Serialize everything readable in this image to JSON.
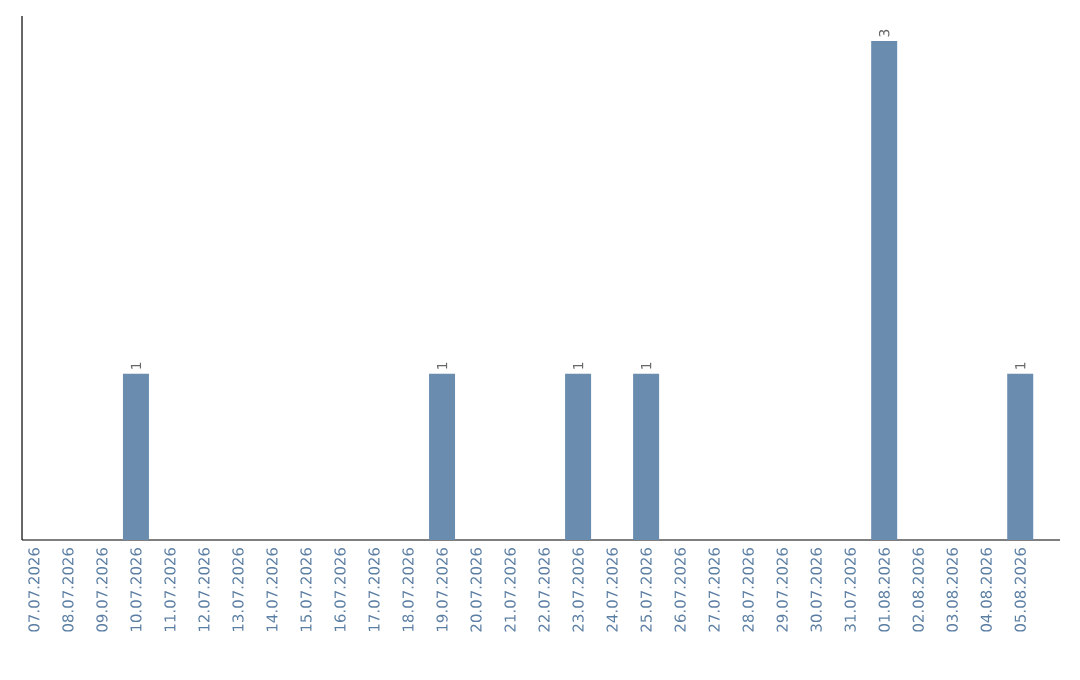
{
  "chart_data": {
    "type": "bar",
    "categories": [
      "07.07.2026",
      "08.07.2026",
      "09.07.2026",
      "10.07.2026",
      "11.07.2026",
      "12.07.2026",
      "13.07.2026",
      "14.07.2026",
      "15.07.2026",
      "16.07.2026",
      "17.07.2026",
      "18.07.2026",
      "19.07.2026",
      "20.07.2026",
      "21.07.2026",
      "22.07.2026",
      "23.07.2026",
      "24.07.2026",
      "25.07.2026",
      "26.07.2026",
      "27.07.2026",
      "28.07.2026",
      "29.07.2026",
      "30.07.2026",
      "31.07.2026",
      "01.08.2026",
      "02.08.2026",
      "03.08.2026",
      "04.08.2026",
      "05.08.2026"
    ],
    "values": [
      0,
      0,
      0,
      1,
      0,
      0,
      0,
      0,
      0,
      0,
      0,
      0,
      1,
      0,
      0,
      0,
      1,
      0,
      1,
      0,
      0,
      0,
      0,
      0,
      0,
      3,
      0,
      0,
      0,
      1
    ],
    "value_labels": [
      null,
      null,
      null,
      "1",
      null,
      null,
      null,
      null,
      null,
      null,
      null,
      null,
      "1",
      null,
      null,
      null,
      "1",
      null,
      "1",
      null,
      null,
      null,
      null,
      null,
      null,
      "3",
      null,
      null,
      null,
      "1"
    ],
    "color": "#6a8caf",
    "ylim": [
      0,
      3.15
    ]
  }
}
